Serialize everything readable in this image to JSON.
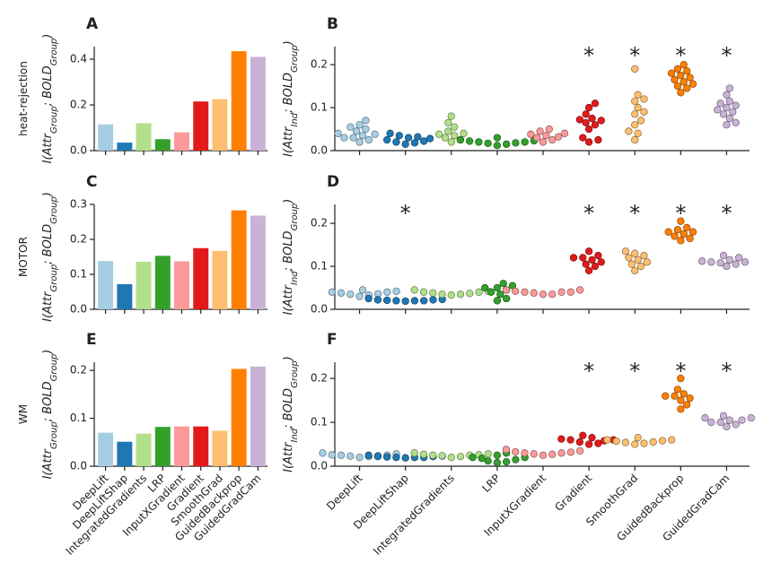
{
  "chart_data": [
    {
      "type": "bar",
      "panel": "A",
      "row_label": "heat-rejection",
      "ylabel": [
        "I(Attr",
        "Group",
        "; BOLD",
        "Group",
        ")"
      ],
      "colors": [
        "#a6cee3",
        "#1f78b4",
        "#b2df8a",
        "#33a02c",
        "#fb9a99",
        "#e31a1c",
        "#fdbf6f",
        "#ff7f00",
        "#cab2d6"
      ],
      "values": [
        0.115,
        0.035,
        0.12,
        0.05,
        0.08,
        0.215,
        0.225,
        0.435,
        0.41
      ],
      "ylim": [
        0,
        0.455
      ],
      "yticks": [
        {
          "value": 0,
          "label": "0.0"
        },
        0.2,
        0.4
      ]
    },
    {
      "type": "swarm",
      "panel": "B",
      "ylabel": [
        "I(Attr",
        "Ind",
        "; BOLD",
        "Group",
        ")"
      ],
      "colors": [
        "#a6cee3",
        "#1f78b4",
        "#b2df8a",
        "#33a02c",
        "#fb9a99",
        "#e31a1c",
        "#fdbf6f",
        "#ff7f00",
        "#cab2d6"
      ],
      "values": [
        [
          0.035,
          0.03,
          0.04,
          0.045,
          0.025,
          0.055,
          0.06,
          0.07,
          0.03,
          0.038,
          0.02,
          0.05
        ],
        [
          0.02,
          0.025,
          0.03,
          0.035,
          0.015,
          0.022,
          0.04,
          0.028,
          0.018,
          0.032
        ],
        [
          0.03,
          0.035,
          0.04,
          0.045,
          0.025,
          0.055,
          0.065,
          0.08,
          0.02,
          0.038
        ],
        [
          0.015,
          0.018,
          0.02,
          0.022,
          0.025,
          0.012,
          0.02,
          0.017,
          0.023,
          0.03
        ],
        [
          0.03,
          0.035,
          0.04,
          0.045,
          0.025,
          0.05,
          0.02,
          0.038,
          0.032
        ],
        [
          0.11,
          0.1,
          0.085,
          0.075,
          0.07,
          0.065,
          0.06,
          0.05,
          0.03,
          0.025,
          0.02,
          0.072
        ],
        [
          0.19,
          0.13,
          0.12,
          0.115,
          0.1,
          0.09,
          0.085,
          0.07,
          0.06,
          0.045,
          0.04,
          0.025
        ],
        [
          0.2,
          0.19,
          0.185,
          0.175,
          0.17,
          0.165,
          0.16,
          0.155,
          0.145,
          0.135,
          0.18,
          0.15
        ],
        [
          0.145,
          0.13,
          0.115,
          0.11,
          0.105,
          0.1,
          0.095,
          0.085,
          0.075,
          0.065,
          0.06,
          0.09
        ]
      ],
      "significance": [
        null,
        null,
        null,
        null,
        null,
        "*",
        "*",
        "*",
        "*"
      ],
      "ylim": [
        0,
        0.242
      ],
      "yticks": [
        {
          "value": 0,
          "label": "0.0"
        },
        0.1,
        0.2
      ]
    },
    {
      "type": "bar",
      "panel": "C",
      "row_label": "MOTOR",
      "ylabel": [
        "I(Attr",
        "Group",
        "; BOLD",
        "Group",
        ")"
      ],
      "colors": [
        "#a6cee3",
        "#1f78b4",
        "#b2df8a",
        "#33a02c",
        "#fb9a99",
        "#e31a1c",
        "#fdbf6f",
        "#ff7f00",
        "#cab2d6"
      ],
      "values": [
        0.138,
        0.072,
        0.136,
        0.153,
        0.137,
        0.175,
        0.167,
        0.283,
        0.268
      ],
      "ylim": [
        0,
        0.3
      ],
      "yticks": [
        {
          "value": 0,
          "label": "0.0"
        },
        0.1,
        0.2,
        0.3
      ]
    },
    {
      "type": "swarm",
      "panel": "D",
      "ylabel": [
        "I(Attr",
        "Ind",
        "; BOLD",
        "Group",
        ")"
      ],
      "colors": [
        "#a6cee3",
        "#1f78b4",
        "#b2df8a",
        "#33a02c",
        "#fb9a99",
        "#e31a1c",
        "#fdbf6f",
        "#ff7f00",
        "#cab2d6"
      ],
      "values": [
        [
          0.035,
          0.04,
          0.038,
          0.042,
          0.03,
          0.045,
          0.036,
          0.033,
          0.04
        ],
        [
          0.02,
          0.022,
          0.021,
          0.023,
          0.019,
          0.02,
          0.025,
          0.022,
          0.02
        ],
        [
          0.035,
          0.04,
          0.038,
          0.042,
          0.035,
          0.045,
          0.033,
          0.037,
          0.04
        ],
        [
          0.06,
          0.055,
          0.05,
          0.045,
          0.04,
          0.035,
          0.025,
          0.02,
          0.05
        ],
        [
          0.035,
          0.04,
          0.045,
          0.042,
          0.038,
          0.04,
          0.035,
          0.045,
          0.04
        ],
        [
          0.135,
          0.125,
          0.12,
          0.115,
          0.11,
          0.105,
          0.1,
          0.09,
          0.12
        ],
        [
          0.135,
          0.13,
          0.12,
          0.115,
          0.11,
          0.105,
          0.1,
          0.09,
          0.125
        ],
        [
          0.205,
          0.19,
          0.185,
          0.18,
          0.175,
          0.17,
          0.165,
          0.16,
          0.18
        ],
        [
          0.125,
          0.12,
          0.115,
          0.11,
          0.108,
          0.105,
          0.1,
          0.112,
          0.11
        ]
      ],
      "significance": [
        null,
        "*",
        null,
        null,
        null,
        "*",
        "*",
        "*",
        "*"
      ],
      "ylim": [
        0,
        0.244
      ],
      "yticks": [
        {
          "value": 0,
          "label": "0.0"
        },
        0.1,
        0.2
      ]
    },
    {
      "type": "bar",
      "panel": "E",
      "row_label": "WM",
      "ylabel": [
        "I(Attr",
        "Group",
        "; BOLD",
        "Group",
        ")"
      ],
      "categories": [
        "DeepLift",
        "DeepLiftShap",
        "IntegratedGradients",
        "LRP",
        "InputXGradient",
        "Gradient",
        "SmoothGrad",
        "GuidedBackprop",
        "GuidedGradCam"
      ],
      "colors": [
        "#a6cee3",
        "#1f78b4",
        "#b2df8a",
        "#33a02c",
        "#fb9a99",
        "#e31a1c",
        "#fdbf6f",
        "#ff7f00",
        "#cab2d6"
      ],
      "values": [
        0.07,
        0.051,
        0.068,
        0.082,
        0.083,
        0.083,
        0.074,
        0.203,
        0.208
      ],
      "ylim": [
        0,
        0.217
      ],
      "yticks": [
        {
          "value": 0,
          "label": "0.0"
        },
        0.1,
        0.2
      ]
    },
    {
      "type": "swarm",
      "panel": "F",
      "ylabel": [
        "I(Attr",
        "Ind",
        "; BOLD",
        "Group",
        ")"
      ],
      "categories": [
        "DeepLift",
        "DeepLiftShap",
        "IntegratedGradients",
        "LRP",
        "InputXGradient",
        "Gradient",
        "SmoothGrad",
        "GuidedBackprop",
        "GuidedGradCam"
      ],
      "colors": [
        "#a6cee3",
        "#1f78b4",
        "#b2df8a",
        "#33a02c",
        "#fb9a99",
        "#e31a1c",
        "#fdbf6f",
        "#ff7f00",
        "#cab2d6"
      ],
      "values": [
        [
          0.022,
          0.025,
          0.024,
          0.026,
          0.02,
          0.028,
          0.023,
          0.025,
          0.03
        ],
        [
          0.02,
          0.022,
          0.021,
          0.023,
          0.019,
          0.02,
          0.025,
          0.022,
          0.02
        ],
        [
          0.022,
          0.025,
          0.028,
          0.03,
          0.02,
          0.026,
          0.024,
          0.027,
          0.025
        ],
        [
          0.01,
          0.012,
          0.015,
          0.018,
          0.02,
          0.025,
          0.03,
          0.008,
          0.02
        ],
        [
          0.025,
          0.03,
          0.035,
          0.028,
          0.032,
          0.038,
          0.03,
          0.027,
          0.033
        ],
        [
          0.07,
          0.065,
          0.06,
          0.058,
          0.055,
          0.052,
          0.05,
          0.06,
          0.062
        ],
        [
          0.065,
          0.06,
          0.058,
          0.055,
          0.052,
          0.05,
          0.06,
          0.057,
          0.054
        ],
        [
          0.2,
          0.175,
          0.165,
          0.16,
          0.155,
          0.15,
          0.14,
          0.13,
          0.16
        ],
        [
          0.115,
          0.11,
          0.105,
          0.1,
          0.095,
          0.09,
          0.105,
          0.1,
          0.11
        ]
      ],
      "significance": [
        null,
        null,
        null,
        null,
        null,
        "*",
        "*",
        "*",
        "*"
      ],
      "ylim": [
        0,
        0.237
      ],
      "yticks": [
        {
          "value": 0,
          "label": "0.0"
        },
        0.1,
        0.2
      ]
    }
  ]
}
